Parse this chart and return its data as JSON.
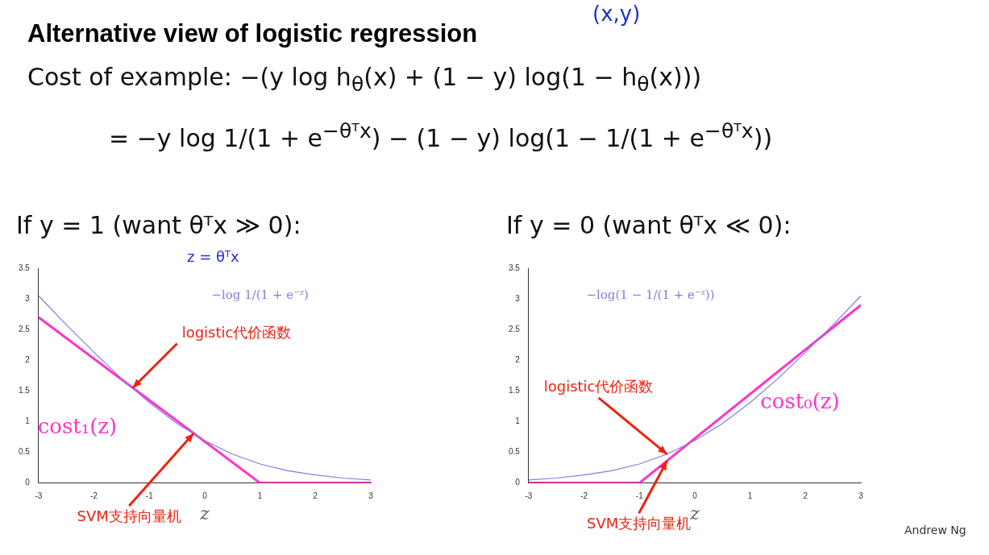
{
  "chart_data": [
    {
      "type": "line",
      "title": "Alternative view of logistic regression",
      "subtitle": "If y = 1 (want θᵀx ≫ 0):",
      "xlabel": "z",
      "annotations": [
        "(x,y)",
        "Cost of example: −(y log h$_{θ}$(x) + (1 − y) log(1 − h$_{θ}$(x)))",
        "= −y log 1/(1 + e$^{−θᵀx}$) − (1 − y) log(1 − 1/(1 + e$^{−θᵀx}$))",
        "z = θᵀx",
        {
          "text": "logistic代价函数",
          "x": -1.3,
          "y": 1.55
        },
        {
          "text": "SVM支持向量机",
          "x": -0.2,
          "y": 0.81
        }
      ],
      "xlim": [
        -3,
        3
      ],
      "xticks": [
        -3,
        -2,
        -1,
        0,
        1,
        2,
        3
      ],
      "ylim": [
        0,
        3.5
      ],
      "yticks": [
        0,
        0.5,
        1,
        1.5,
        2,
        2.5,
        3,
        3.5
      ],
      "grid": false,
      "legend": false,
      "marker": "none",
      "line_style": "solid",
      "series": [
        {
          "name": "−log 1/(1 + e⁻ᶻ)",
          "color": "#7f7fdf",
          "x": [
            -3,
            -2.5,
            -2,
            -1.5,
            -1,
            -0.5,
            0,
            0.5,
            1,
            1.5,
            2,
            2.5,
            3
          ],
          "values": [
            3.05,
            2.58,
            2.13,
            1.7,
            1.31,
            0.97,
            0.69,
            0.47,
            0.31,
            0.2,
            0.13,
            0.08,
            0.05
          ]
        },
        {
          "name": "cost₁(z)",
          "color": "#ff33cc",
          "x": [
            -3,
            1,
            3
          ],
          "values": [
            2.7,
            0,
            0
          ]
        }
      ]
    },
    {
      "type": "line",
      "subtitle": "If y = 0 (want θᵀx ≪ 0):",
      "xlabel": "z",
      "annotations": [
        {
          "text": "logistic代价函数",
          "x": -0.5,
          "y": 0.47
        },
        {
          "text": "SVM支持向量机",
          "x": -0.5,
          "y": 0.36
        },
        "Andrew Ng"
      ],
      "xlim": [
        -3,
        3
      ],
      "xticks": [
        -3,
        -2,
        -1,
        0,
        1,
        2,
        3
      ],
      "ylim": [
        0,
        3.5
      ],
      "yticks": [
        0,
        0.5,
        1,
        1.5,
        2,
        2.5,
        3,
        3.5
      ],
      "grid": false,
      "legend": false,
      "marker": "none",
      "line_style": "solid",
      "series": [
        {
          "name": "−log(1 − 1/(1 + e⁻ᶻ))",
          "color": "#7f7fdf",
          "x": [
            -3,
            -2.5,
            -2,
            -1.5,
            -1,
            -0.5,
            0,
            0.5,
            1,
            1.5,
            2,
            2.5,
            3
          ],
          "values": [
            0.05,
            0.08,
            0.13,
            0.2,
            0.31,
            0.47,
            0.69,
            0.97,
            1.31,
            1.7,
            2.13,
            2.58,
            3.05
          ]
        },
        {
          "name": "cost₀(z)",
          "color": "#ff33cc",
          "x": [
            -3,
            -1,
            3
          ],
          "values": [
            0,
            0,
            2.9
          ]
        }
      ]
    }
  ]
}
